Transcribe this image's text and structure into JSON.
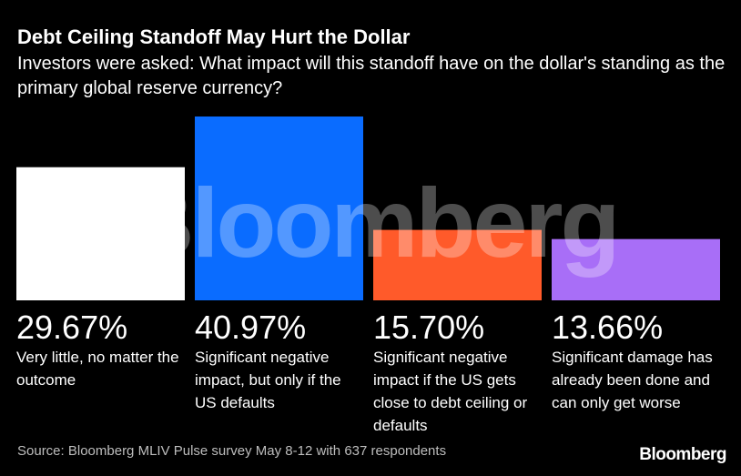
{
  "chart_data": {
    "type": "bar",
    "title": "Debt Ceiling Standoff May Hurt the Dollar",
    "subtitle": "Investors were asked: What impact will this standoff have on the dollar's standing as the primary global reserve currency?",
    "categories": [
      "Very little, no matter the outcome",
      "Significant negative impact, but only if the US defaults",
      "Significant negative impact if the US gets close to debt ceiling or defaults",
      "Significant damage has already been done and can only get worse"
    ],
    "values": [
      29.67,
      40.97,
      15.7,
      13.66
    ],
    "value_labels": [
      "29.67%",
      "40.97%",
      "15.70%",
      "13.66%"
    ],
    "colors": [
      "#ffffff",
      "#0a6cff",
      "#ff5a2a",
      "#a86ef7"
    ],
    "unit": "%",
    "ylim": [
      0,
      40.97
    ],
    "grid": false,
    "legend": "none"
  },
  "source": "Source: Bloomberg MLIV Pulse survey May 8-12 with 637 respondents",
  "watermark_text": "Bloomberg",
  "logo_text": "Bloomberg"
}
